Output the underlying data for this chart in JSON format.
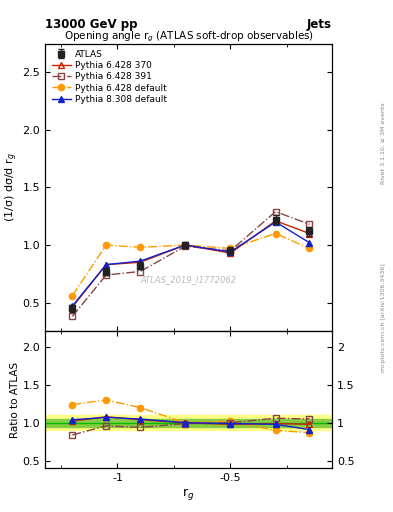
{
  "title_main": "13000 GeV pp",
  "title_right": "Jets",
  "plot_title": "Opening angle r$_g$ (ATLAS soft-drop observables)",
  "xlabel": "r$_g$",
  "ylabel_main": "(1/σ) dσ/d r$_g$",
  "ylabel_ratio": "Ratio to ATLAS",
  "watermark": "ATLAS_2019_I1772062",
  "rivet_label": "Rivet 3.1.10, ≥ 3M events",
  "arxiv_label": "mcplots.cern.ch [arXiv:1306.3436]",
  "xvalues": [
    -1.2,
    -1.05,
    -0.9,
    -0.7,
    -0.5,
    -0.3,
    -0.15
  ],
  "atlas_y": [
    0.45,
    0.77,
    0.82,
    1.0,
    0.95,
    1.22,
    1.12
  ],
  "atlas_yerr": [
    0.03,
    0.03,
    0.03,
    0.03,
    0.03,
    0.04,
    0.04
  ],
  "p6428_370_y": [
    0.46,
    0.83,
    0.85,
    1.0,
    0.93,
    1.21,
    1.1
  ],
  "p6428_391_y": [
    0.38,
    0.74,
    0.77,
    0.99,
    0.95,
    1.29,
    1.18
  ],
  "p6428_def_y": [
    0.56,
    1.0,
    0.98,
    1.0,
    0.97,
    1.1,
    0.97
  ],
  "p8308_def_y": [
    0.47,
    0.83,
    0.86,
    1.0,
    0.94,
    1.2,
    1.02
  ],
  "ratio_p6428_370": [
    1.02,
    1.08,
    1.04,
    1.0,
    0.98,
    0.99,
    0.98
  ],
  "ratio_p6428_391": [
    0.84,
    0.96,
    0.94,
    0.99,
    1.0,
    1.06,
    1.05
  ],
  "ratio_p6428_def": [
    1.24,
    1.3,
    1.2,
    1.0,
    1.02,
    0.9,
    0.87
  ],
  "ratio_p8308_def": [
    1.04,
    1.07,
    1.05,
    1.0,
    0.99,
    0.98,
    0.91
  ],
  "atlas_band_green": [
    0.95,
    1.05
  ],
  "atlas_band_yellow": [
    0.9,
    1.1
  ],
  "color_atlas": "#222222",
  "color_p6428_370": "#cc2200",
  "color_p6428_391": "#884444",
  "color_p6428_def": "#ff9900",
  "color_p8308_def": "#1122cc",
  "xlim": [
    -1.32,
    -0.05
  ],
  "ylim_main": [
    0.25,
    2.75
  ],
  "ylim_ratio": [
    0.4,
    2.2
  ],
  "yticks_main": [
    0.5,
    1.0,
    1.5,
    2.0,
    2.5
  ],
  "yticks_ratio": [
    0.5,
    1.0,
    1.5,
    2.0
  ]
}
